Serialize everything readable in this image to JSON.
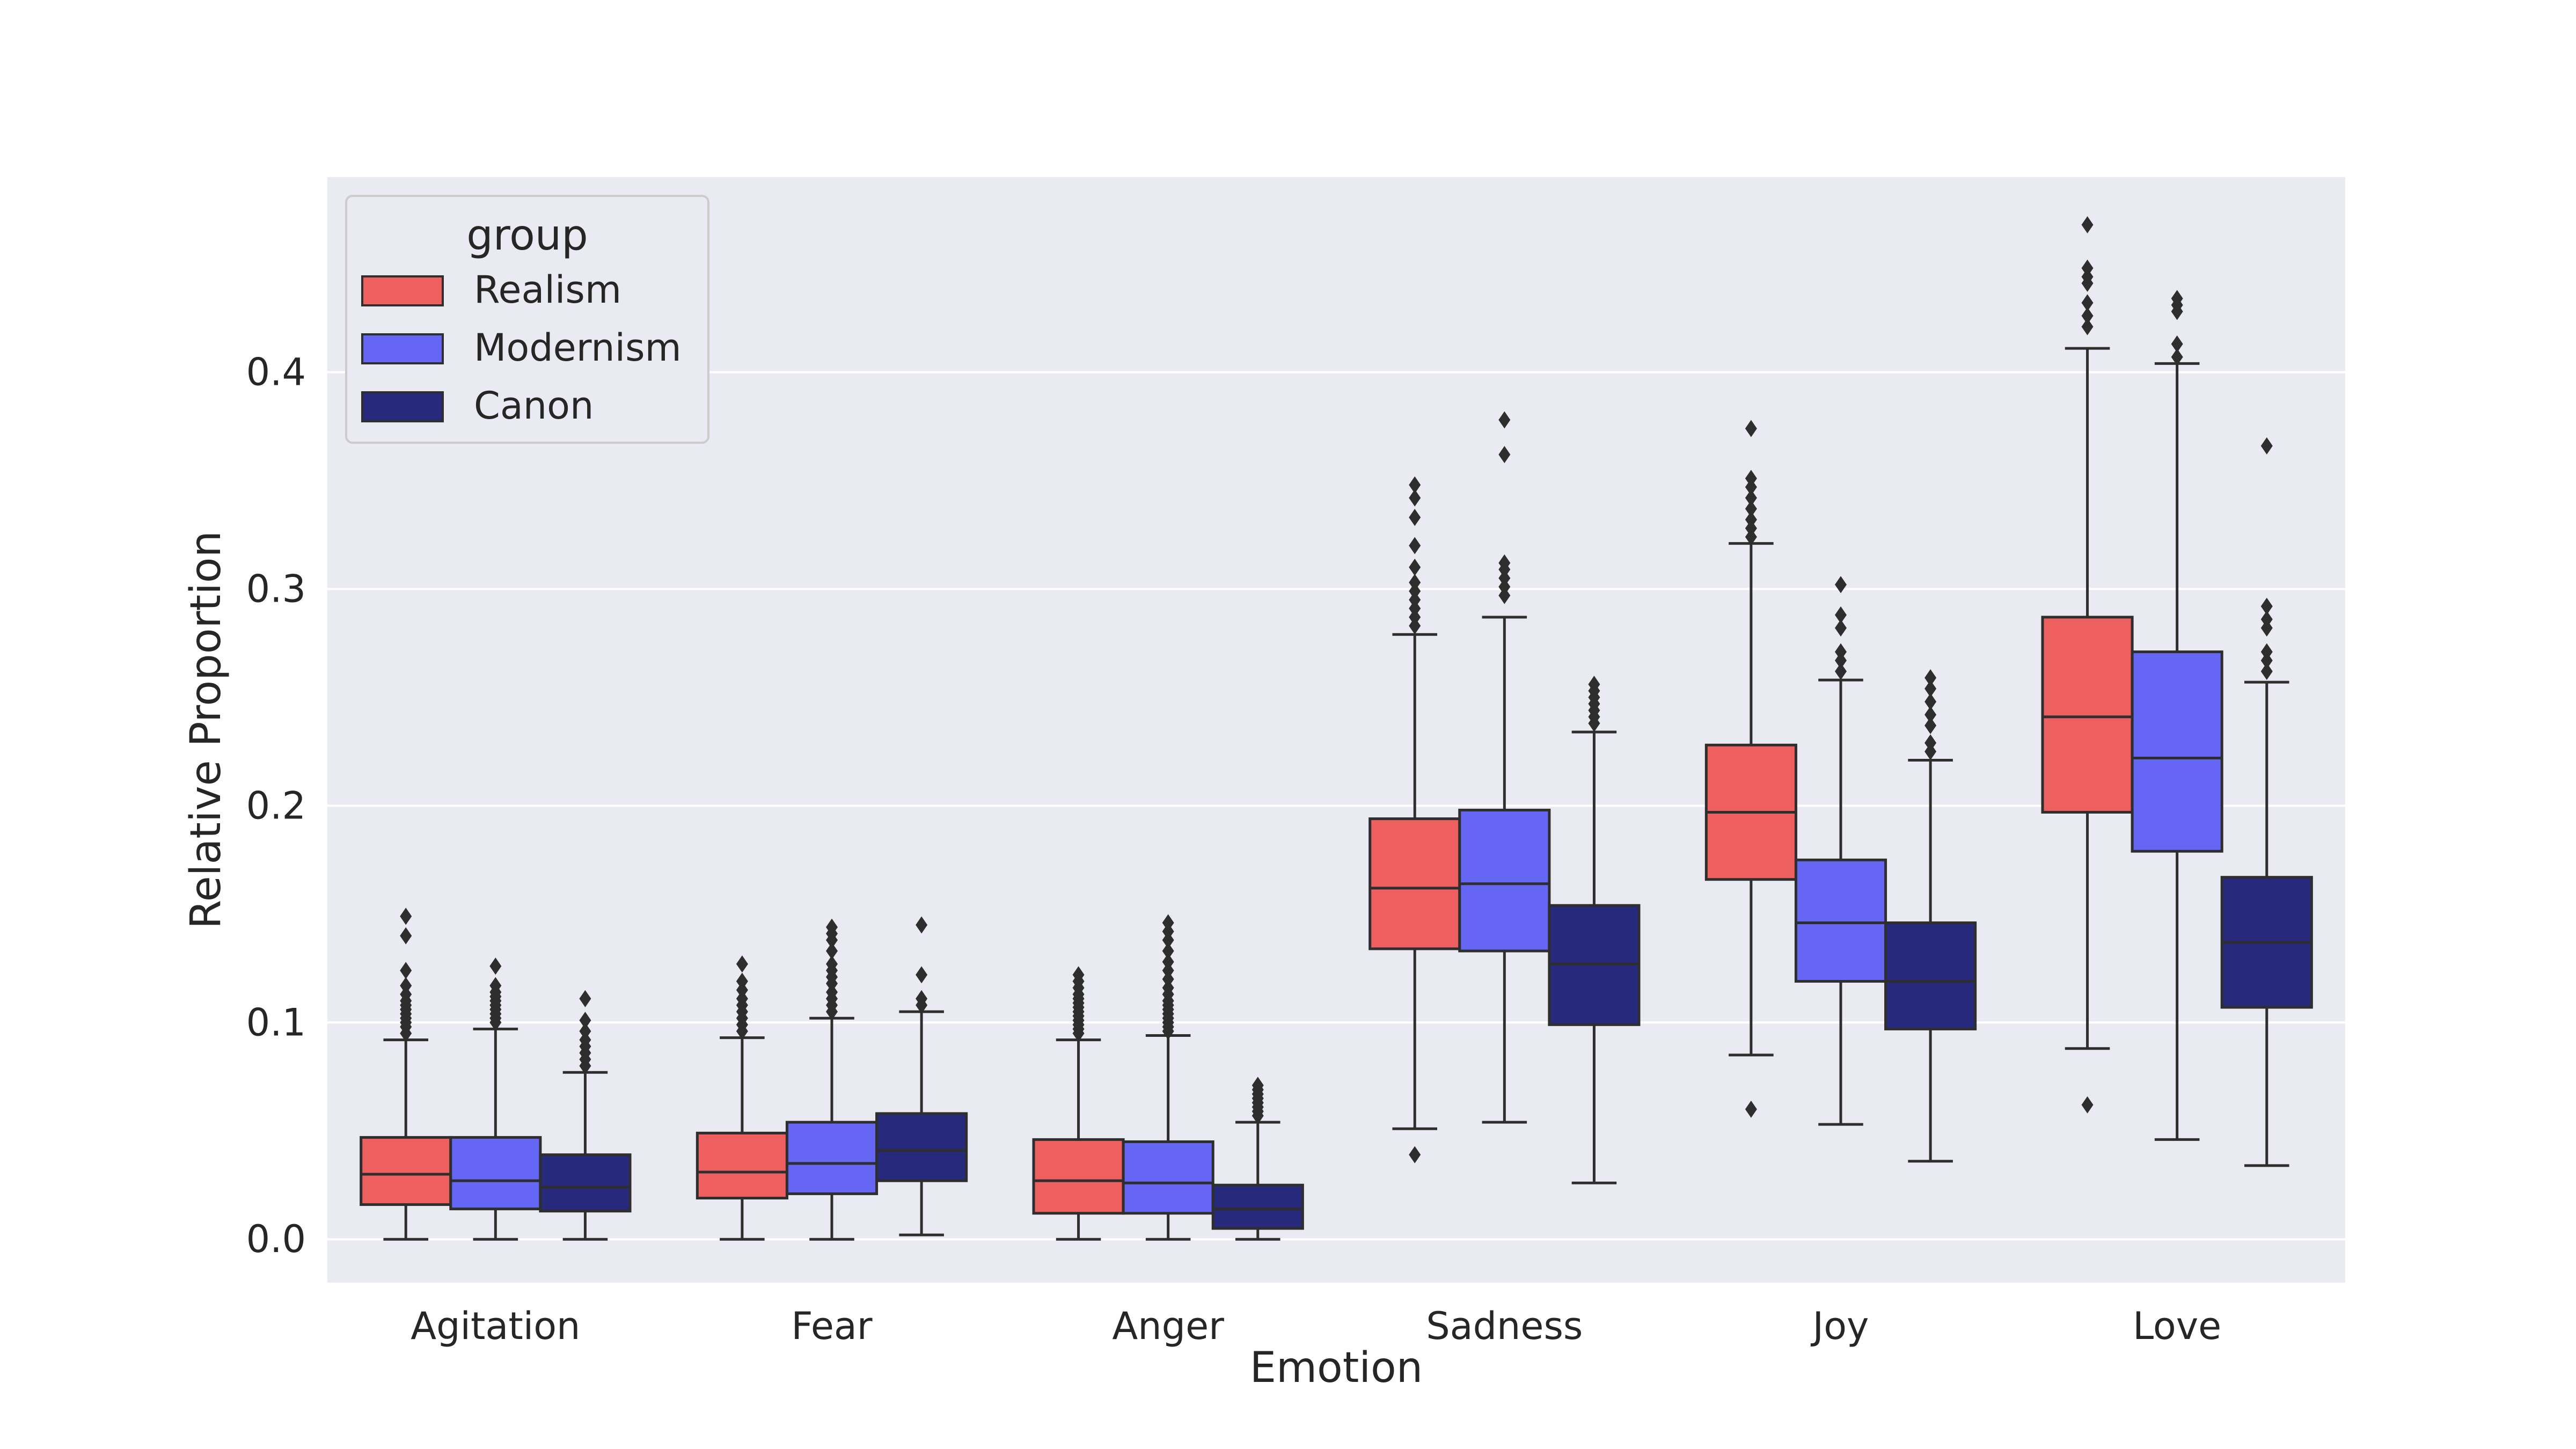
{
  "chart_data": {
    "type": "boxplot",
    "xlabel": "Emotion",
    "ylabel": "Relative Proportion",
    "ylim": [
      -0.02,
      0.49
    ],
    "yticks": [
      0.0,
      0.1,
      0.2,
      0.3,
      0.4
    ],
    "ytick_labels": [
      "0.0",
      "0.1",
      "0.2",
      "0.3",
      "0.4"
    ],
    "grid": true,
    "legend": {
      "title": "group",
      "placement": "top-left"
    },
    "categories": [
      "Agitation",
      "Fear",
      "Anger",
      "Sadness",
      "Joy",
      "Love"
    ],
    "series": [
      {
        "name": "Realism",
        "color": "#ee5f5f",
        "boxes": [
          {
            "whisker_low": 0.0,
            "q1": 0.016,
            "median": 0.03,
            "q3": 0.047,
            "whisker_high": 0.092,
            "outliers": [
              0.095,
              0.098,
              0.1,
              0.102,
              0.104,
              0.106,
              0.108,
              0.11,
              0.113,
              0.117,
              0.124,
              0.14,
              0.149
            ]
          },
          {
            "whisker_low": 0.0,
            "q1": 0.019,
            "median": 0.031,
            "q3": 0.049,
            "whisker_high": 0.093,
            "outliers": [
              0.096,
              0.099,
              0.102,
              0.105,
              0.108,
              0.111,
              0.115,
              0.119,
              0.127
            ]
          },
          {
            "whisker_low": 0.0,
            "q1": 0.012,
            "median": 0.027,
            "q3": 0.046,
            "whisker_high": 0.092,
            "outliers": [
              0.095,
              0.097,
              0.099,
              0.101,
              0.103,
              0.105,
              0.107,
              0.109,
              0.111,
              0.113,
              0.116,
              0.119,
              0.122
            ]
          },
          {
            "whisker_low": 0.051,
            "q1": 0.134,
            "median": 0.162,
            "q3": 0.194,
            "whisker_high": 0.279,
            "outliers": [
              0.039,
              0.283,
              0.287,
              0.291,
              0.295,
              0.299,
              0.303,
              0.31,
              0.32,
              0.333,
              0.342,
              0.348
            ]
          },
          {
            "whisker_low": 0.085,
            "q1": 0.166,
            "median": 0.197,
            "q3": 0.228,
            "whisker_high": 0.321,
            "outliers": [
              0.06,
              0.324,
              0.328,
              0.332,
              0.337,
              0.342,
              0.347,
              0.351,
              0.374
            ]
          },
          {
            "whisker_low": 0.088,
            "q1": 0.197,
            "median": 0.241,
            "q3": 0.287,
            "whisker_high": 0.411,
            "outliers": [
              0.062,
              0.421,
              0.426,
              0.432,
              0.441,
              0.444,
              0.448,
              0.468
            ]
          }
        ]
      },
      {
        "name": "Modernism",
        "color": "#6666f4",
        "boxes": [
          {
            "whisker_low": 0.0,
            "q1": 0.014,
            "median": 0.027,
            "q3": 0.047,
            "whisker_high": 0.097,
            "outliers": [
              0.1,
              0.102,
              0.104,
              0.106,
              0.108,
              0.11,
              0.112,
              0.114,
              0.117,
              0.126
            ]
          },
          {
            "whisker_low": 0.0,
            "q1": 0.021,
            "median": 0.035,
            "q3": 0.054,
            "whisker_high": 0.102,
            "outliers": [
              0.105,
              0.108,
              0.111,
              0.114,
              0.118,
              0.121,
              0.124,
              0.127,
              0.133,
              0.138,
              0.141,
              0.144
            ]
          },
          {
            "whisker_low": 0.0,
            "q1": 0.012,
            "median": 0.026,
            "q3": 0.045,
            "whisker_high": 0.094,
            "outliers": [
              0.096,
              0.098,
              0.1,
              0.102,
              0.104,
              0.106,
              0.108,
              0.11,
              0.113,
              0.116,
              0.12,
              0.124,
              0.128,
              0.133,
              0.138,
              0.142,
              0.146
            ]
          },
          {
            "whisker_low": 0.054,
            "q1": 0.133,
            "median": 0.164,
            "q3": 0.198,
            "whisker_high": 0.287,
            "outliers": [
              0.297,
              0.301,
              0.305,
              0.309,
              0.312,
              0.362,
              0.378
            ]
          },
          {
            "whisker_low": 0.053,
            "q1": 0.119,
            "median": 0.146,
            "q3": 0.175,
            "whisker_high": 0.258,
            "outliers": [
              0.262,
              0.267,
              0.271,
              0.282,
              0.288,
              0.302
            ]
          },
          {
            "whisker_low": 0.046,
            "q1": 0.179,
            "median": 0.222,
            "q3": 0.271,
            "whisker_high": 0.404,
            "outliers": [
              0.407,
              0.413,
              0.428,
              0.431,
              0.434
            ]
          }
        ]
      },
      {
        "name": "Canon",
        "color": "#272a7c",
        "boxes": [
          {
            "whisker_low": 0.0,
            "q1": 0.013,
            "median": 0.024,
            "q3": 0.039,
            "whisker_high": 0.077,
            "outliers": [
              0.08,
              0.083,
              0.086,
              0.089,
              0.092,
              0.096,
              0.101,
              0.111
            ]
          },
          {
            "whisker_low": 0.002,
            "q1": 0.027,
            "median": 0.041,
            "q3": 0.058,
            "whisker_high": 0.105,
            "outliers": [
              0.108,
              0.111,
              0.122,
              0.145
            ]
          },
          {
            "whisker_low": 0.0,
            "q1": 0.005,
            "median": 0.014,
            "q3": 0.025,
            "whisker_high": 0.054,
            "outliers": [
              0.057,
              0.059,
              0.061,
              0.063,
              0.065,
              0.067,
              0.069,
              0.071
            ]
          },
          {
            "whisker_low": 0.026,
            "q1": 0.099,
            "median": 0.127,
            "q3": 0.154,
            "whisker_high": 0.234,
            "outliers": [
              0.238,
              0.241,
              0.244,
              0.247,
              0.25,
              0.253,
              0.256
            ]
          },
          {
            "whisker_low": 0.036,
            "q1": 0.097,
            "median": 0.119,
            "q3": 0.146,
            "whisker_high": 0.221,
            "outliers": [
              0.225,
              0.229,
              0.237,
              0.242,
              0.248,
              0.254,
              0.259
            ]
          },
          {
            "whisker_low": 0.034,
            "q1": 0.107,
            "median": 0.137,
            "q3": 0.167,
            "whisker_high": 0.257,
            "outliers": [
              0.262,
              0.267,
              0.271,
              0.282,
              0.286,
              0.292,
              0.366
            ]
          }
        ]
      }
    ]
  }
}
